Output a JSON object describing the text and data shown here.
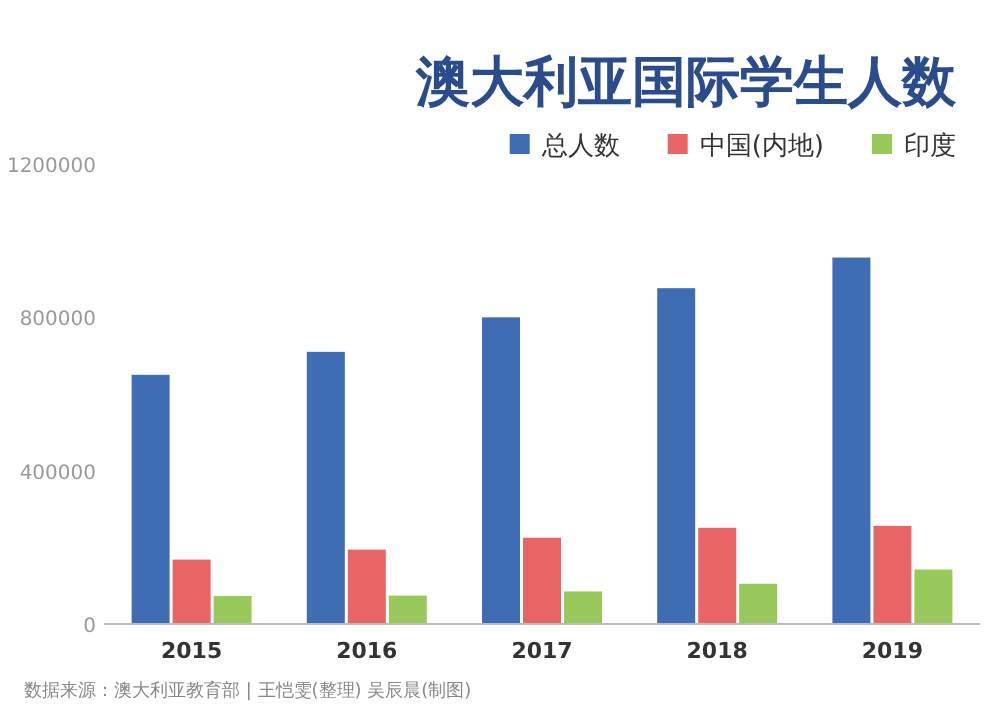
{
  "chart_data": {
    "type": "bar",
    "title": "澳大利亚国际学生人数",
    "categories": [
      "2015",
      "2016",
      "2017",
      "2018",
      "2019"
    ],
    "series": [
      {
        "name": "总人数",
        "color": "#3f6db3",
        "values": [
          650000,
          710000,
          800000,
          876000,
          956000
        ]
      },
      {
        "name": "中国(内地)",
        "color": "#e96565",
        "values": [
          168000,
          194000,
          225000,
          251000,
          256000
        ]
      },
      {
        "name": "印度",
        "color": "#98c95a",
        "values": [
          73000,
          74000,
          85000,
          105000,
          142000
        ]
      }
    ],
    "ylim": [
      0,
      1200000
    ],
    "yticks": [
      0,
      400000,
      800000,
      1200000
    ],
    "legend": "top right",
    "annotations": [
      "数据来源：澳大利亚教育部 | 王恺雯(整理) 吴辰晨(制图)"
    ]
  }
}
